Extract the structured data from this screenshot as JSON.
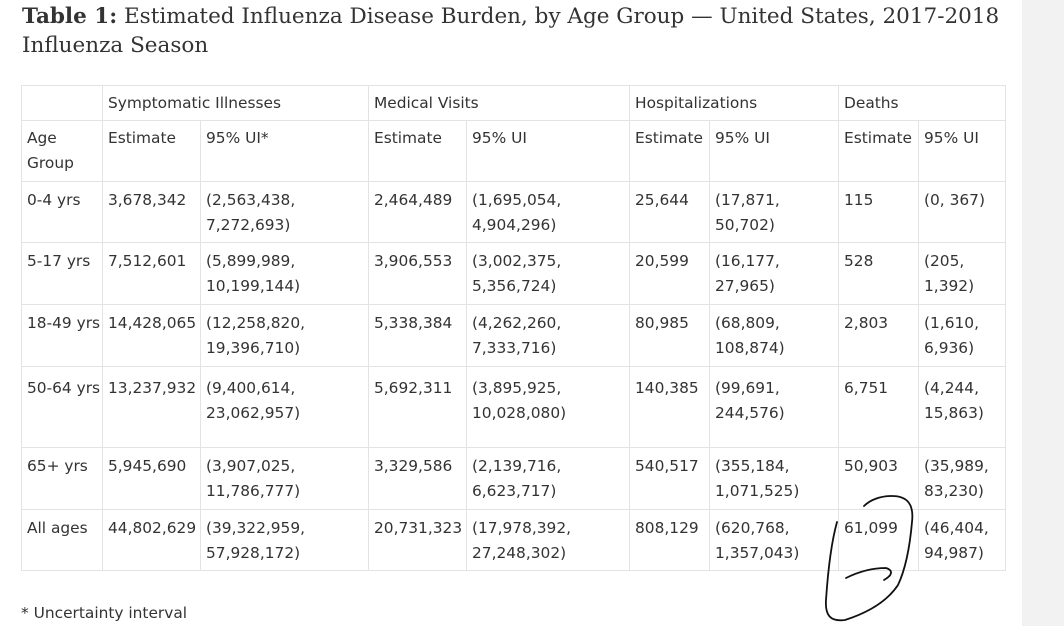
{
  "title": {
    "label": "Table 1:",
    "text": "Estimated Influenza Disease Burden, by Age Group — United States, 2017-2018 Influenza Season"
  },
  "table": {
    "groups": [
      "Symptomatic Illnesses",
      "Medical Visits",
      "Hospitalizations",
      "Deaths"
    ],
    "age_header": "Age Group",
    "subheaders": [
      "Estimate",
      "95% UI*",
      "Estimate",
      "95% UI",
      "Estimate",
      "95% UI",
      "Estimate",
      "95% UI"
    ],
    "rows": [
      {
        "age": "0-4 yrs",
        "cells": [
          "3,678,342",
          "(2,563,438, 7,272,693)",
          "2,464,489",
          "(1,695,054, 4,904,296)",
          "25,644",
          "(17,871, 50,702)",
          "115",
          "(0, 367)"
        ]
      },
      {
        "age": "5-17 yrs",
        "cells": [
          "7,512,601",
          "(5,899,989, 10,199,144)",
          "3,906,553",
          "(3,002,375, 5,356,724)",
          "20,599",
          "(16,177, 27,965)",
          "528",
          "(205, 1,392)"
        ]
      },
      {
        "age": "18-49 yrs",
        "cells": [
          "14,428,065",
          "(12,258,820, 19,396,710)",
          "5,338,384",
          "(4,262,260, 7,333,716)",
          "80,985",
          "(68,809, 108,874)",
          "2,803",
          "(1,610, 6,936)"
        ]
      },
      {
        "age": "50-64 yrs",
        "cells": [
          "13,237,932",
          "(9,400,614, 23,062,957)",
          "5,692,311",
          "(3,895,925, 10,028,080)",
          "140,385",
          "(99,691, 244,576)",
          "6,751",
          "(4,244, 15,863)"
        ]
      },
      {
        "age": "65+ yrs",
        "cells": [
          "5,945,690",
          "(3,907,025, 11,786,777)",
          "3,329,586",
          "(2,139,716, 6,623,717)",
          "540,517",
          "(355,184, 1,071,525)",
          "50,903",
          "(35,989, 83,230)"
        ]
      },
      {
        "age": "All ages",
        "cells": [
          "44,802,629",
          "(39,322,959, 57,928,172)",
          "20,731,323",
          "(17,978,392, 27,248,302)",
          "808,129",
          "(620,768, 1,357,043)",
          "61,099",
          "(46,404, 94,987)"
        ]
      }
    ]
  },
  "footnote": "* Uncertainty interval",
  "annotation_color": "#111111"
}
